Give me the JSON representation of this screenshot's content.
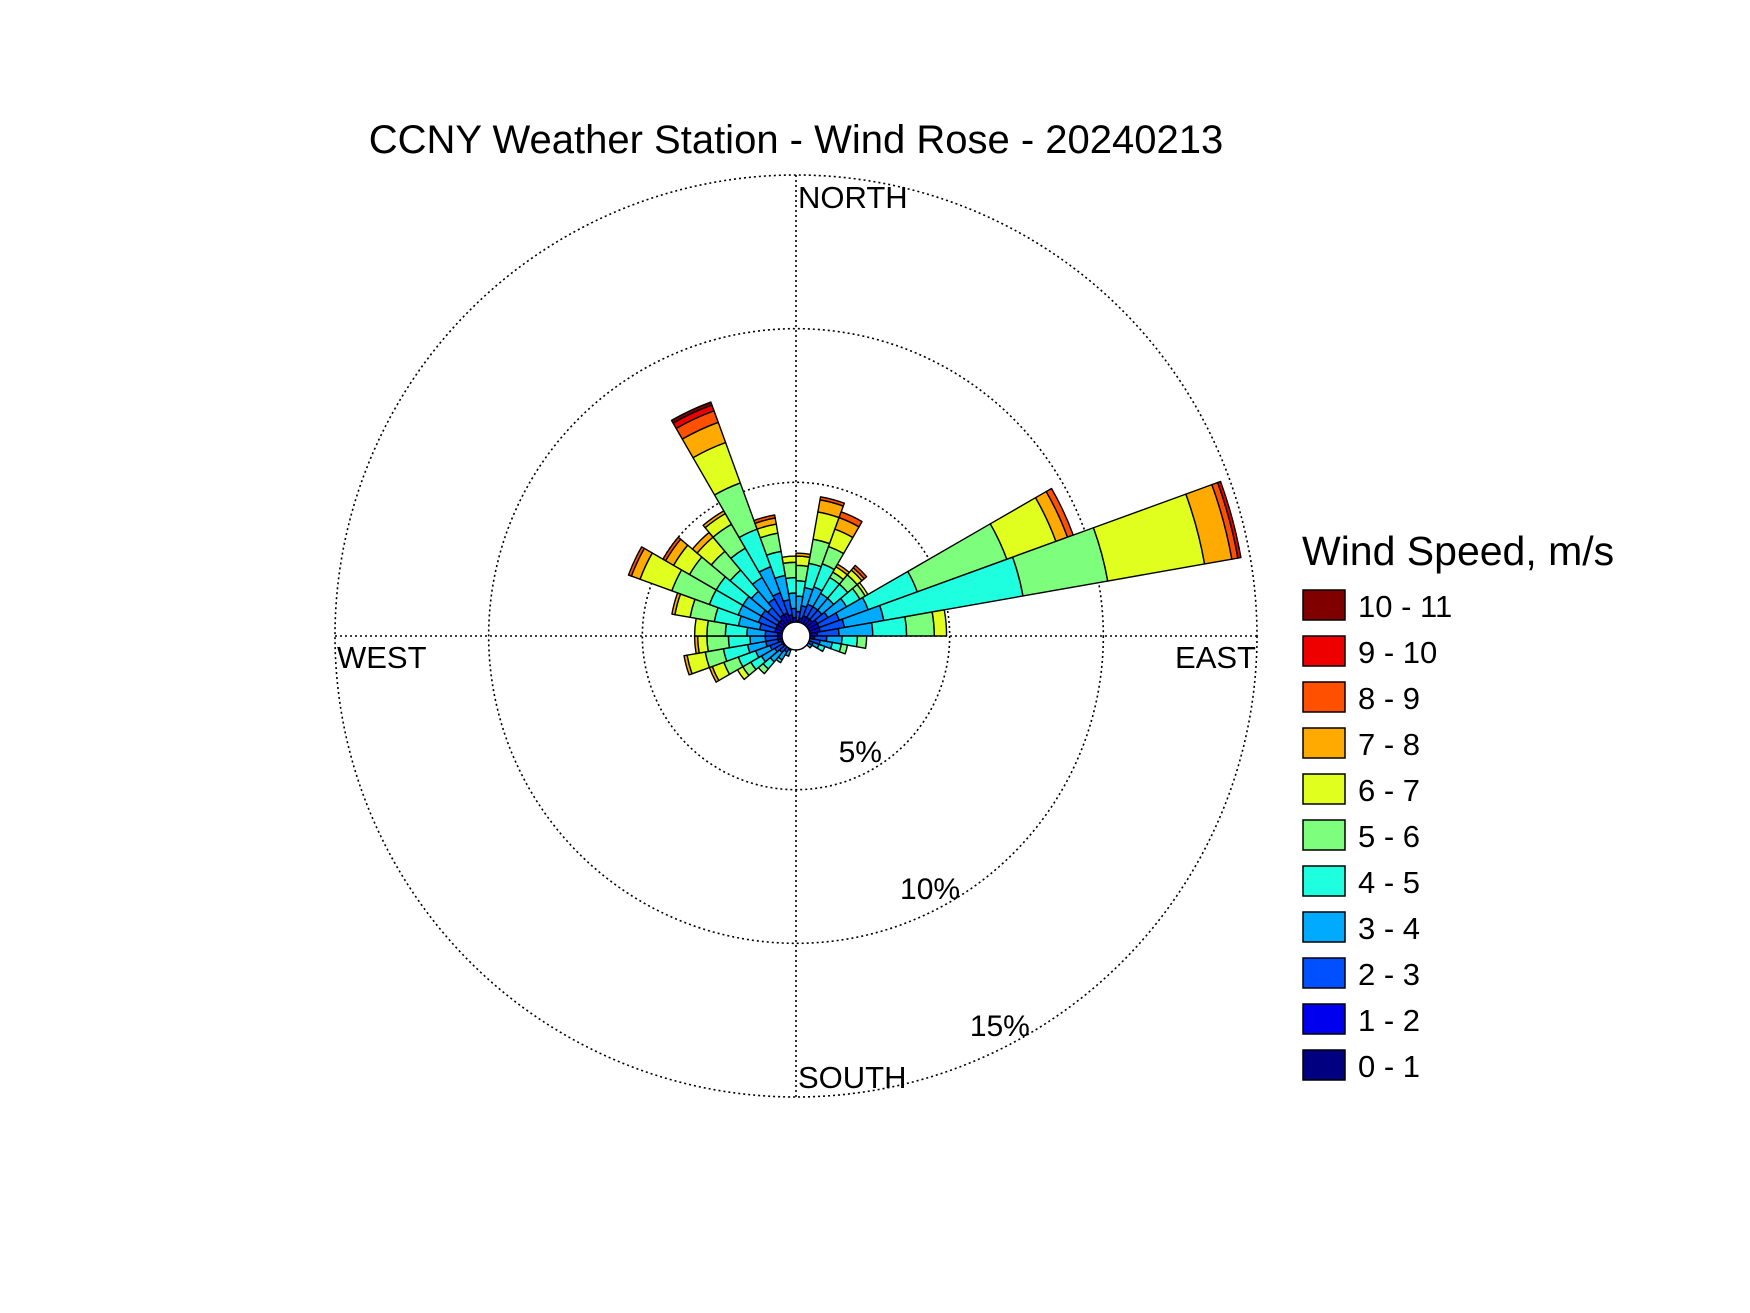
{
  "chart_data": {
    "type": "wind-rose",
    "title": "CCNY Weather Station - Wind Rose - 20240213",
    "direction_labels": {
      "north": "NORTH",
      "south": "SOUTH",
      "east": "EAST",
      "west": "WEST"
    },
    "radial_ticks": [
      {
        "value": 5,
        "label": "5%"
      },
      {
        "value": 10,
        "label": "10%"
      },
      {
        "value": 15,
        "label": "15%"
      }
    ],
    "radial_max": 15,
    "sector_width_deg": 10,
    "legend_title": "Wind Speed, m/s",
    "legend_position": "right",
    "speed_bins": [
      {
        "label": "0 - 1",
        "color": "#000080"
      },
      {
        "label": "1 - 2",
        "color": "#0000ee"
      },
      {
        "label": "2 - 3",
        "color": "#0050ff"
      },
      {
        "label": "3 - 4",
        "color": "#00aaff"
      },
      {
        "label": "4 - 5",
        "color": "#1effe0"
      },
      {
        "label": "5 - 6",
        "color": "#7dff7d"
      },
      {
        "label": "6 - 7",
        "color": "#e0ff1e"
      },
      {
        "label": "7 - 8",
        "color": "#ffaa00"
      },
      {
        "label": "8 - 9",
        "color": "#ff5000"
      },
      {
        "label": "9 - 10",
        "color": "#ee0000"
      },
      {
        "label": "10 - 11",
        "color": "#800000"
      }
    ],
    "sectors": [
      {
        "direction": 5,
        "cumulative": [
          0.2,
          0.5,
          0.8,
          1.3,
          1.8,
          2.3,
          2.6,
          2.7
        ]
      },
      {
        "direction": 15,
        "cumulative": [
          0.3,
          0.6,
          1.0,
          1.6,
          2.4,
          3.2,
          4.1,
          4.5,
          4.6
        ]
      },
      {
        "direction": 25,
        "cumulative": [
          0.3,
          0.7,
          1.1,
          1.7,
          2.5,
          3.1,
          3.7,
          4.1,
          4.3
        ]
      },
      {
        "direction": 35,
        "cumulative": [
          0.3,
          0.7,
          1.1,
          1.6,
          2.2,
          2.4,
          2.6,
          2.7
        ]
      },
      {
        "direction": 45,
        "cumulative": [
          0.3,
          0.7,
          1.1,
          1.6,
          2.2,
          2.6,
          2.8,
          2.9,
          3.0
        ]
      },
      {
        "direction": 55,
        "cumulative": [
          0.3,
          0.8,
          1.2,
          1.9,
          2.4,
          2.6,
          2.7
        ]
      },
      {
        "direction": 65,
        "cumulative": [
          0.3,
          0.8,
          1.5,
          2.5,
          4.2,
          7.3,
          9.0,
          9.4,
          9.6
        ]
      },
      {
        "direction": 75,
        "cumulative": [
          0.3,
          0.8,
          1.6,
          2.9,
          7.5,
          10.3,
          13.5,
          14.4,
          14.6,
          14.7
        ]
      },
      {
        "direction": 85,
        "cumulative": [
          0.3,
          0.7,
          1.4,
          2.5,
          3.6,
          4.5,
          4.9
        ]
      },
      {
        "direction": 95,
        "cumulative": [
          0.3,
          0.6,
          1.0,
          1.5,
          2.0,
          2.3
        ]
      },
      {
        "direction": 105,
        "cumulative": [
          0.2,
          0.4,
          0.8,
          1.2,
          1.5,
          1.7
        ]
      },
      {
        "direction": 115,
        "cumulative": [
          0.2,
          0.4,
          0.6,
          0.8,
          1.0
        ]
      },
      {
        "direction": 125,
        "cumulative": [
          0.15,
          0.3,
          0.45,
          0.6
        ]
      },
      {
        "direction": 135,
        "cumulative": [
          0.1,
          0.25,
          0.4
        ]
      },
      {
        "direction": 145,
        "cumulative": [
          0.1,
          0.2,
          0.3
        ]
      },
      {
        "direction": 155,
        "cumulative": [
          0.1,
          0.2,
          0.3
        ]
      },
      {
        "direction": 165,
        "cumulative": [
          0.1,
          0.2,
          0.3
        ]
      },
      {
        "direction": 175,
        "cumulative": [
          0.1,
          0.2,
          0.3
        ]
      },
      {
        "direction": 185,
        "cumulative": [
          0.1,
          0.2,
          0.3
        ]
      },
      {
        "direction": 195,
        "cumulative": [
          0.1,
          0.25,
          0.4
        ]
      },
      {
        "direction": 205,
        "cumulative": [
          0.15,
          0.3,
          0.5,
          0.7
        ]
      },
      {
        "direction": 215,
        "cumulative": [
          0.15,
          0.35,
          0.6,
          0.9,
          1.0
        ]
      },
      {
        "direction": 225,
        "cumulative": [
          0.2,
          0.4,
          0.7,
          1.1,
          1.4,
          1.6
        ]
      },
      {
        "direction": 235,
        "cumulative": [
          0.2,
          0.5,
          0.8,
          1.3,
          1.7,
          2.0,
          2.2
        ]
      },
      {
        "direction": 245,
        "cumulative": [
          0.2,
          0.5,
          0.9,
          1.4,
          2.0,
          2.5,
          2.9,
          3.0
        ]
      },
      {
        "direction": 255,
        "cumulative": [
          0.3,
          0.6,
          1.0,
          1.6,
          2.4,
          3.0,
          3.6,
          3.7
        ]
      },
      {
        "direction": 265,
        "cumulative": [
          0.3,
          0.6,
          1.0,
          1.5,
          2.2,
          2.9,
          3.2,
          3.3
        ]
      },
      {
        "direction": 275,
        "cumulative": [
          0.3,
          0.6,
          1.0,
          1.6,
          2.3,
          2.9,
          3.3
        ]
      },
      {
        "direction": 285,
        "cumulative": [
          0.3,
          0.7,
          1.2,
          1.9,
          2.7,
          3.5,
          4.0,
          4.1
        ]
      },
      {
        "direction": 295,
        "cumulative": [
          0.3,
          0.7,
          1.3,
          2.0,
          3.0,
          4.3,
          5.4,
          5.7,
          5.8
        ]
      },
      {
        "direction": 305,
        "cumulative": [
          0.3,
          0.7,
          1.3,
          2.0,
          3.0,
          4.0,
          4.6,
          4.9,
          5.0
        ]
      },
      {
        "direction": 315,
        "cumulative": [
          0.3,
          0.7,
          1.2,
          1.9,
          2.8,
          3.6,
          4.2,
          4.4
        ]
      },
      {
        "direction": 325,
        "cumulative": [
          0.3,
          0.8,
          1.4,
          2.2,
          3.3,
          4.2,
          4.6,
          4.7
        ]
      },
      {
        "direction": 335,
        "cumulative": [
          0.3,
          0.8,
          1.5,
          2.4,
          3.7,
          5.3,
          6.7,
          7.4,
          7.8,
          8.0,
          8.1
        ]
      },
      {
        "direction": 345,
        "cumulative": [
          0.3,
          0.7,
          1.2,
          2.0,
          2.8,
          3.4,
          3.7,
          3.9,
          4.0
        ]
      },
      {
        "direction": 355,
        "cumulative": [
          0.3,
          0.6,
          0.9,
          1.4,
          1.9,
          2.4,
          2.6
        ]
      }
    ]
  }
}
